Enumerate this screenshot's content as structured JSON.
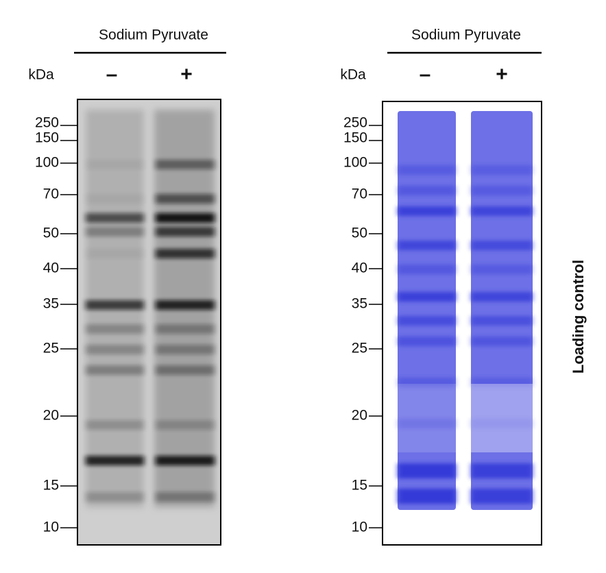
{
  "panels": [
    {
      "header": "Sodium Pyruvate",
      "unit_label": "kDa",
      "lanes": [
        "–",
        "+"
      ],
      "markers": [
        250,
        150,
        100,
        70,
        50,
        40,
        35,
        25,
        20,
        15,
        10
      ]
    },
    {
      "header": "Sodium Pyruvate",
      "unit_label": "kDa",
      "lanes": [
        "–",
        "+"
      ],
      "markers": [
        250,
        150,
        100,
        70,
        50,
        40,
        35,
        25,
        20,
        15,
        10
      ],
      "side_label": "Loading control"
    }
  ]
}
